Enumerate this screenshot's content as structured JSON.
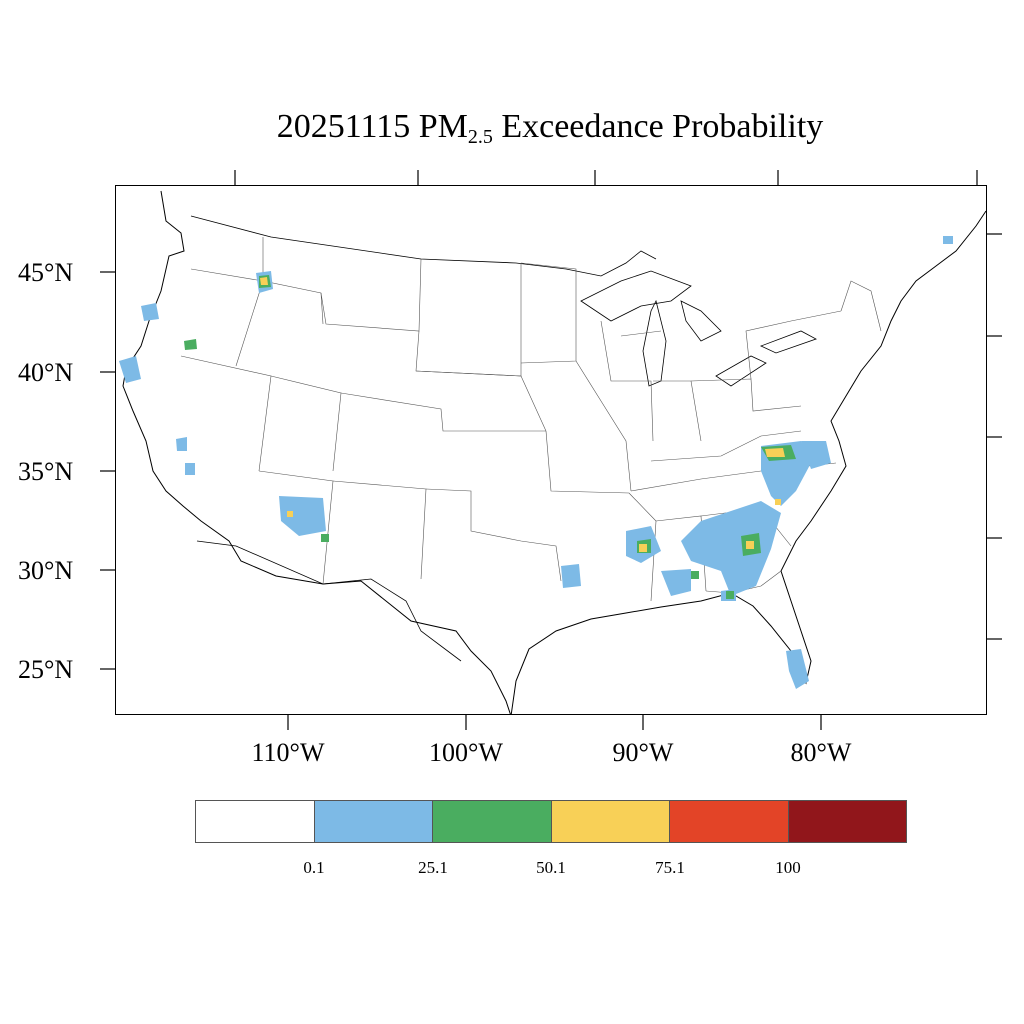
{
  "title": {
    "date": "20251115",
    "prefix": "PM",
    "subscript": "2.5",
    "suffix": "Exceedance Probability"
  },
  "latitude_labels": [
    "45°N",
    "40°N",
    "35°N",
    "30°N",
    "25°N"
  ],
  "longitude_labels": [
    "110°W",
    "100°W",
    "90°W",
    "80°W"
  ],
  "colorbar": {
    "colors": [
      "#ffffff",
      "#7dbae6",
      "#4aad60",
      "#f8d057",
      "#e34427",
      "#91161b"
    ],
    "tick_labels": [
      "0.1",
      "25.1",
      "50.1",
      "75.1",
      "100"
    ]
  }
}
